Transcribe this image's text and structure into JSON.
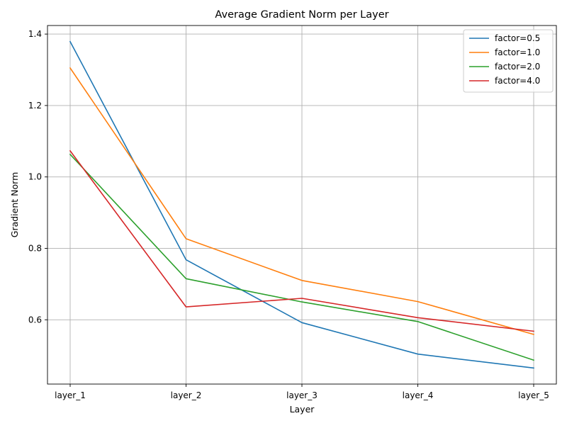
{
  "chart_data": {
    "type": "line",
    "title": "Average Gradient Norm per Layer",
    "xlabel": "Layer",
    "ylabel": "Gradient Norm",
    "categories": [
      "layer_1",
      "layer_2",
      "layer_3",
      "layer_4",
      "layer_5"
    ],
    "yticks": [
      0.6,
      0.8,
      1.0,
      1.2,
      1.4
    ],
    "ytick_labels": [
      "0.6",
      "0.8",
      "1.0",
      "1.2",
      "1.4"
    ],
    "ylim": [
      0.42,
      1.424
    ],
    "grid": true,
    "legend_position": "top-right",
    "series": [
      {
        "name": "factor=0.5",
        "color": "#1f77b4",
        "values": [
          1.379,
          0.768,
          0.592,
          0.504,
          0.465
        ]
      },
      {
        "name": "factor=1.0",
        "color": "#ff7f0e",
        "values": [
          1.305,
          0.827,
          0.71,
          0.651,
          0.559
        ]
      },
      {
        "name": "factor=2.0",
        "color": "#2ca02c",
        "values": [
          1.063,
          0.715,
          0.65,
          0.595,
          0.487
        ]
      },
      {
        "name": "factor=4.0",
        "color": "#d62728",
        "values": [
          1.073,
          0.636,
          0.66,
          0.606,
          0.568
        ]
      }
    ]
  }
}
